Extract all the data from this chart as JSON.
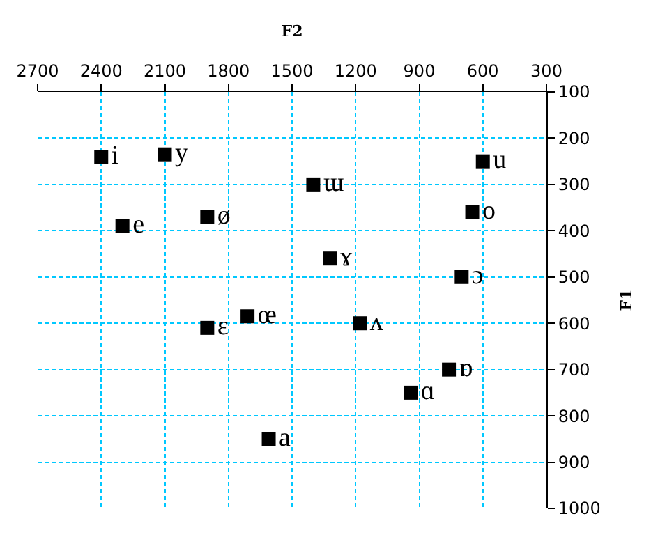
{
  "chart_data": {
    "type": "scatter",
    "xlabel": "F2",
    "ylabel": "F1",
    "marker": "square",
    "grid": true,
    "xlim": [
      2700,
      300
    ],
    "xticks": [
      2700,
      2400,
      2100,
      1800,
      1500,
      1200,
      900,
      600,
      300
    ],
    "ylim": [
      1000,
      100
    ],
    "yticks": [
      100,
      200,
      300,
      400,
      500,
      600,
      700,
      800,
      900,
      1000
    ],
    "series": [
      {
        "name": "i",
        "color": "#000000",
        "x": [
          2400
        ],
        "values": [
          240
        ]
      },
      {
        "name": "y",
        "color": "#000000",
        "x": [
          2100
        ],
        "values": [
          235
        ]
      },
      {
        "name": "ɯ",
        "color": "#000000",
        "x": [
          1400
        ],
        "values": [
          300
        ]
      },
      {
        "name": "u",
        "color": "#000000",
        "x": [
          600
        ],
        "values": [
          250
        ]
      },
      {
        "name": "e",
        "color": "#000000",
        "x": [
          2300
        ],
        "values": [
          390
        ]
      },
      {
        "name": "ø",
        "color": "#000000",
        "x": [
          1900
        ],
        "values": [
          370
        ]
      },
      {
        "name": "o",
        "color": "#000000",
        "x": [
          650
        ],
        "values": [
          360
        ]
      },
      {
        "name": "ɤ",
        "color": "#000000",
        "x": [
          1320
        ],
        "values": [
          460
        ]
      },
      {
        "name": "ɔ",
        "color": "#000000",
        "x": [
          700
        ],
        "values": [
          500
        ]
      },
      {
        "name": "ɛ",
        "color": "#000000",
        "x": [
          1900
        ],
        "values": [
          610
        ]
      },
      {
        "name": "œ",
        "color": "#000000",
        "x": [
          1710
        ],
        "values": [
          585
        ]
      },
      {
        "name": "ʌ",
        "color": "#000000",
        "x": [
          1180
        ],
        "values": [
          600
        ]
      },
      {
        "name": "ɒ",
        "color": "#000000",
        "x": [
          760
        ],
        "values": [
          700
        ]
      },
      {
        "name": "ɑ",
        "color": "#000000",
        "x": [
          940
        ],
        "values": [
          750
        ]
      },
      {
        "name": "a",
        "color": "#000000",
        "x": [
          1610
        ],
        "values": [
          850
        ]
      }
    ]
  }
}
